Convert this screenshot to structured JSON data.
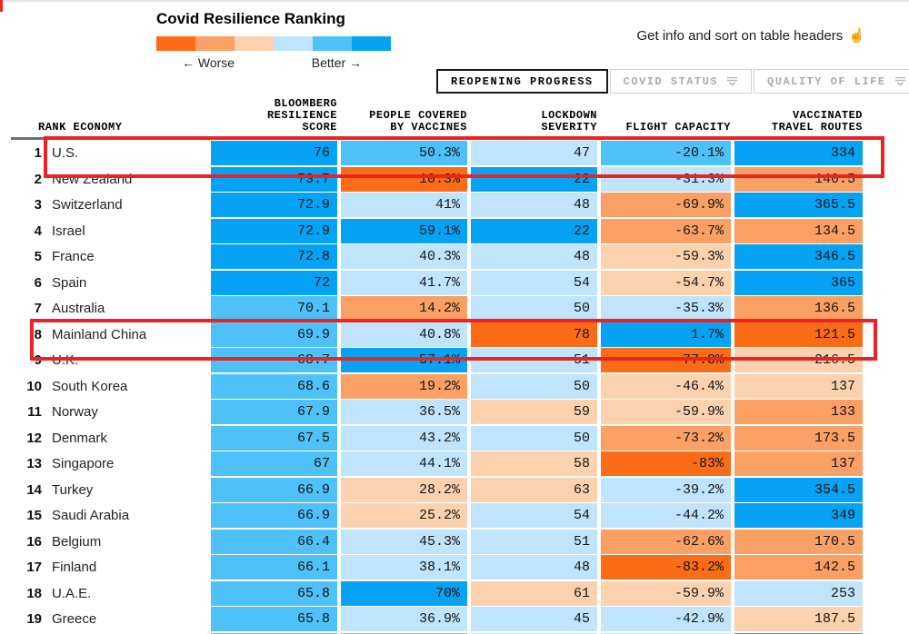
{
  "header": {
    "title": "Covid Resilience Ranking",
    "hint": "Get info and sort on table headers",
    "legend": {
      "worse_label": "← Worse",
      "better_label": "Better →",
      "colors": [
        "#fb6c17",
        "#fba064",
        "#fcd2ae",
        "#bfe4fb",
        "#4ec1f9",
        "#06a2f3"
      ]
    }
  },
  "palette": {
    "o3": "#fb6c17",
    "o2": "#fba064",
    "o1": "#fcd2ae",
    "b1": "#bfe4fb",
    "b2": "#4ec1f9",
    "b3": "#06a2f3",
    "red_annotation": "#ed2224"
  },
  "tabs": [
    {
      "label": "REOPENING PROGRESS",
      "active": true,
      "menu_icon": false
    },
    {
      "label": "COVID STATUS",
      "active": false,
      "menu_icon": true
    },
    {
      "label": "QUALITY OF LIFE",
      "active": false,
      "menu_icon": true
    }
  ],
  "table": {
    "columns": [
      {
        "label": "RANK ECONOMY",
        "align": "left"
      },
      {
        "label": "BLOOMBERG\nRESILIENCE\nSCORE",
        "align": "right"
      },
      {
        "label": "PEOPLE COVERED\nBY VACCINES",
        "align": "right"
      },
      {
        "label": "LOCKDOWN\nSEVERITY",
        "align": "right"
      },
      {
        "label": "FLIGHT CAPACITY",
        "align": "right"
      },
      {
        "label": "VACCINATED\nTRAVEL ROUTES",
        "align": "right"
      }
    ],
    "rows": [
      {
        "rank": "1",
        "economy": "U.S.",
        "highlighted": true,
        "cells": [
          {
            "v": "76",
            "c": "b3"
          },
          {
            "v": "50.3%",
            "c": "b2"
          },
          {
            "v": "47",
            "c": "b1"
          },
          {
            "v": "-20.1%",
            "c": "b2"
          },
          {
            "v": "334",
            "c": "b3"
          }
        ]
      },
      {
        "rank": "2",
        "economy": "New Zealand",
        "highlighted": false,
        "cells": [
          {
            "v": "73.7",
            "c": "b3"
          },
          {
            "v": "10.3%",
            "c": "o3"
          },
          {
            "v": "22",
            "c": "b3"
          },
          {
            "v": "-31.3%",
            "c": "b1"
          },
          {
            "v": "140.5",
            "c": "o2"
          }
        ]
      },
      {
        "rank": "3",
        "economy": "Switzerland",
        "highlighted": false,
        "cells": [
          {
            "v": "72.9",
            "c": "b3"
          },
          {
            "v": "41%",
            "c": "b1"
          },
          {
            "v": "48",
            "c": "b1"
          },
          {
            "v": "-69.9%",
            "c": "o2"
          },
          {
            "v": "365.5",
            "c": "b3"
          }
        ]
      },
      {
        "rank": "4",
        "economy": "Israel",
        "highlighted": false,
        "cells": [
          {
            "v": "72.9",
            "c": "b3"
          },
          {
            "v": "59.1%",
            "c": "b3"
          },
          {
            "v": "22",
            "c": "b3"
          },
          {
            "v": "-63.7%",
            "c": "o2"
          },
          {
            "v": "134.5",
            "c": "o2"
          }
        ]
      },
      {
        "rank": "5",
        "economy": "France",
        "highlighted": false,
        "cells": [
          {
            "v": "72.8",
            "c": "b3"
          },
          {
            "v": "40.3%",
            "c": "b1"
          },
          {
            "v": "48",
            "c": "b1"
          },
          {
            "v": "-59.3%",
            "c": "o1"
          },
          {
            "v": "346.5",
            "c": "b3"
          }
        ]
      },
      {
        "rank": "6",
        "economy": "Spain",
        "highlighted": false,
        "cells": [
          {
            "v": "72",
            "c": "b3"
          },
          {
            "v": "41.7%",
            "c": "b1"
          },
          {
            "v": "54",
            "c": "b1"
          },
          {
            "v": "-54.7%",
            "c": "o1"
          },
          {
            "v": "365",
            "c": "b3"
          }
        ]
      },
      {
        "rank": "7",
        "economy": "Australia",
        "highlighted": false,
        "cells": [
          {
            "v": "70.1",
            "c": "b2"
          },
          {
            "v": "14.2%",
            "c": "o2"
          },
          {
            "v": "50",
            "c": "b1"
          },
          {
            "v": "-35.3%",
            "c": "b1"
          },
          {
            "v": "136.5",
            "c": "o2"
          }
        ]
      },
      {
        "rank": "8",
        "economy": "Mainland China",
        "highlighted": true,
        "cells": [
          {
            "v": "69.9",
            "c": "b2"
          },
          {
            "v": "40.8%",
            "c": "b1"
          },
          {
            "v": "78",
            "c": "o3"
          },
          {
            "v": "1.7%",
            "c": "b3"
          },
          {
            "v": "121.5",
            "c": "o3"
          }
        ]
      },
      {
        "rank": "9",
        "economy": "U.K.",
        "highlighted": false,
        "cells": [
          {
            "v": "68.7",
            "c": "b2"
          },
          {
            "v": "57.1%",
            "c": "b3"
          },
          {
            "v": "51",
            "c": "b1"
          },
          {
            "v": "-77.8%",
            "c": "o3"
          },
          {
            "v": "216.5",
            "c": "o1"
          }
        ]
      },
      {
        "rank": "10",
        "economy": "South Korea",
        "highlighted": false,
        "cells": [
          {
            "v": "68.6",
            "c": "b2"
          },
          {
            "v": "19.2%",
            "c": "o2"
          },
          {
            "v": "50",
            "c": "b1"
          },
          {
            "v": "-46.4%",
            "c": "o1"
          },
          {
            "v": "137",
            "c": "o1"
          }
        ]
      },
      {
        "rank": "11",
        "economy": "Norway",
        "highlighted": false,
        "cells": [
          {
            "v": "67.9",
            "c": "b2"
          },
          {
            "v": "36.5%",
            "c": "b1"
          },
          {
            "v": "59",
            "c": "o1"
          },
          {
            "v": "-59.9%",
            "c": "o1"
          },
          {
            "v": "133",
            "c": "o2"
          }
        ]
      },
      {
        "rank": "12",
        "economy": "Denmark",
        "highlighted": false,
        "cells": [
          {
            "v": "67.5",
            "c": "b2"
          },
          {
            "v": "43.2%",
            "c": "b1"
          },
          {
            "v": "50",
            "c": "b1"
          },
          {
            "v": "-73.2%",
            "c": "o2"
          },
          {
            "v": "173.5",
            "c": "o2"
          }
        ]
      },
      {
        "rank": "13",
        "economy": "Singapore",
        "highlighted": false,
        "cells": [
          {
            "v": "67",
            "c": "b2"
          },
          {
            "v": "44.1%",
            "c": "b1"
          },
          {
            "v": "58",
            "c": "o1"
          },
          {
            "v": "-83%",
            "c": "o3"
          },
          {
            "v": "137",
            "c": "o2"
          }
        ]
      },
      {
        "rank": "14",
        "economy": "Turkey",
        "highlighted": false,
        "cells": [
          {
            "v": "66.9",
            "c": "b2"
          },
          {
            "v": "28.2%",
            "c": "o1"
          },
          {
            "v": "63",
            "c": "o1"
          },
          {
            "v": "-39.2%",
            "c": "b1"
          },
          {
            "v": "354.5",
            "c": "b3"
          }
        ]
      },
      {
        "rank": "15",
        "economy": "Saudi Arabia",
        "highlighted": false,
        "cells": [
          {
            "v": "66.9",
            "c": "b2"
          },
          {
            "v": "25.2%",
            "c": "o1"
          },
          {
            "v": "54",
            "c": "b1"
          },
          {
            "v": "-44.2%",
            "c": "b1"
          },
          {
            "v": "349",
            "c": "b3"
          }
        ]
      },
      {
        "rank": "16",
        "economy": "Belgium",
        "highlighted": false,
        "cells": [
          {
            "v": "66.4",
            "c": "b2"
          },
          {
            "v": "45.3%",
            "c": "b1"
          },
          {
            "v": "51",
            "c": "b1"
          },
          {
            "v": "-62.6%",
            "c": "o2"
          },
          {
            "v": "170.5",
            "c": "o2"
          }
        ]
      },
      {
        "rank": "17",
        "economy": "Finland",
        "highlighted": false,
        "cells": [
          {
            "v": "66.1",
            "c": "b2"
          },
          {
            "v": "38.1%",
            "c": "b1"
          },
          {
            "v": "48",
            "c": "b1"
          },
          {
            "v": "-83.2%",
            "c": "o3"
          },
          {
            "v": "142.5",
            "c": "o2"
          }
        ]
      },
      {
        "rank": "18",
        "economy": "U.A.E.",
        "highlighted": false,
        "cells": [
          {
            "v": "65.8",
            "c": "b2"
          },
          {
            "v": "70%",
            "c": "b3"
          },
          {
            "v": "61",
            "c": "o1"
          },
          {
            "v": "-59.9%",
            "c": "o1"
          },
          {
            "v": "253",
            "c": "b1"
          }
        ]
      },
      {
        "rank": "19",
        "economy": "Greece",
        "highlighted": false,
        "cells": [
          {
            "v": "65.8",
            "c": "b2"
          },
          {
            "v": "36.9%",
            "c": "b1"
          },
          {
            "v": "45",
            "c": "b1"
          },
          {
            "v": "-42.9%",
            "c": "b1"
          },
          {
            "v": "187.5",
            "c": "o1"
          }
        ]
      },
      {
        "rank": "",
        "economy": "",
        "highlighted": false,
        "cells": [
          {
            "v": "",
            "c": "b2"
          },
          {
            "v": "",
            "c": "o2"
          },
          {
            "v": "",
            "c": "b1"
          },
          {
            "v": "",
            "c": "b1"
          },
          {
            "v": "",
            "c": "b3"
          }
        ]
      }
    ]
  }
}
